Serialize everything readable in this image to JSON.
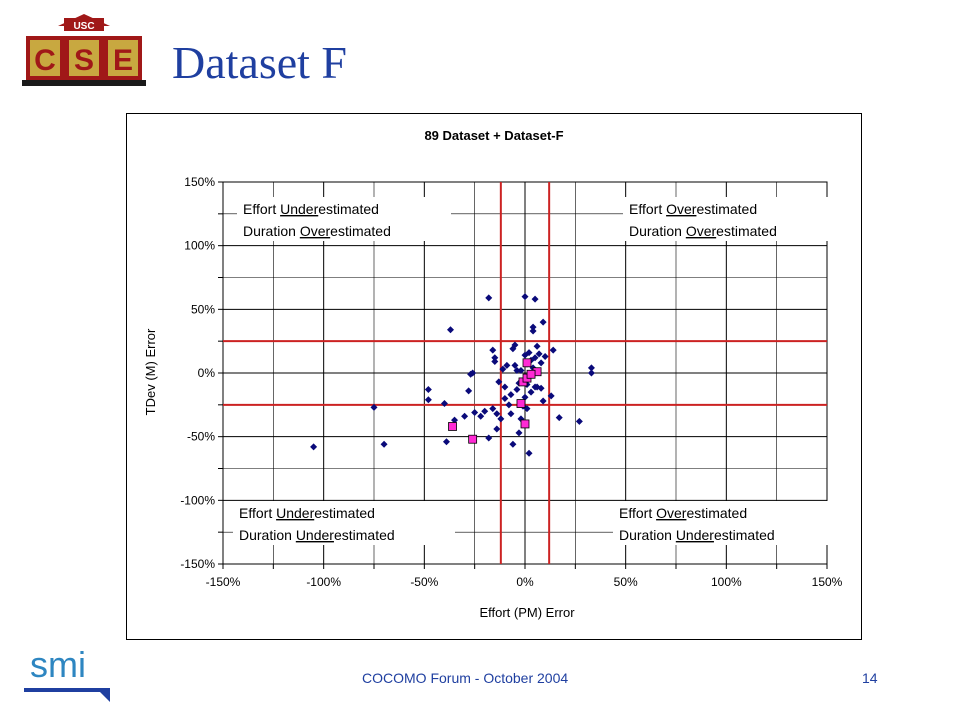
{
  "slide": {
    "title": "Dataset F",
    "footer": "COCOMO Forum - October 2004",
    "page_number": "14",
    "logo_top_text": "USC",
    "logo_letters": "CSE",
    "smi_logo_text": "smi"
  },
  "colors": {
    "title": "#1f3fa0",
    "diamond": "#0a0a7a",
    "square": "#ff2ad4",
    "threshold_line": "#cc2222",
    "logo_red": "#a01818",
    "logo_gold": "#c8a840",
    "smi": "#2e86c1"
  },
  "chart_data": {
    "type": "scatter",
    "title": "89 Dataset + Dataset-F",
    "xlabel": "Effort (PM) Error",
    "ylabel": "TDev (M) Error",
    "xlim": [
      -150,
      150
    ],
    "ylim": [
      -150,
      150
    ],
    "x_ticks": [
      "-150%",
      "-100%",
      "-50%",
      "0%",
      "50%",
      "100%",
      "150%"
    ],
    "y_ticks": [
      "150%",
      "100%",
      "50%",
      "0%",
      "-50%",
      "-100%",
      "-150%"
    ],
    "grid": true,
    "threshold_lines": {
      "x": [
        -12,
        12
      ],
      "y": [
        25,
        -25
      ]
    },
    "quadrant_labels": {
      "top_left": {
        "effort_prefix": "Effort ",
        "effort_key": "Under",
        "effort_suffix": "estimated",
        "duration_prefix": "Duration ",
        "duration_key": "Over",
        "duration_suffix": "estimated"
      },
      "top_right": {
        "effort_prefix": "Effort ",
        "effort_key": "Over",
        "effort_suffix": "estimated",
        "duration_prefix": "Duration ",
        "duration_key": "Over",
        "duration_suffix": "estimated"
      },
      "bottom_left": {
        "effort_prefix": "Effort ",
        "effort_key": "Under",
        "effort_suffix": "estimated",
        "duration_prefix": "Duration ",
        "duration_key": "Under",
        "duration_suffix": "estimated"
      },
      "bottom_right": {
        "effort_prefix": "Effort ",
        "effort_key": "Over",
        "effort_suffix": "estimated",
        "duration_prefix": "Duration ",
        "duration_key": "Under",
        "duration_suffix": "estimated"
      }
    },
    "series": [
      {
        "marker": "diamond",
        "points": [
          [
            -105,
            -58
          ],
          [
            -75,
            -27
          ],
          [
            -70,
            -56
          ],
          [
            -48,
            -13
          ],
          [
            -48,
            -21
          ],
          [
            -40,
            -24
          ],
          [
            -39,
            -54
          ],
          [
            -37,
            34
          ],
          [
            -35,
            -37
          ],
          [
            -30,
            -34
          ],
          [
            -28,
            -14
          ],
          [
            -27,
            -1
          ],
          [
            -26,
            0
          ],
          [
            -25,
            -31
          ],
          [
            -22,
            -34
          ],
          [
            -20,
            -30
          ],
          [
            -18,
            -51
          ],
          [
            -18,
            59
          ],
          [
            -16,
            -28
          ],
          [
            -16,
            18
          ],
          [
            -15,
            12
          ],
          [
            -15,
            9
          ],
          [
            -14,
            -32
          ],
          [
            -14,
            -44
          ],
          [
            -13,
            -7
          ],
          [
            -12,
            -36
          ],
          [
            -11,
            3
          ],
          [
            -10,
            -11
          ],
          [
            -10,
            -20
          ],
          [
            -9,
            6
          ],
          [
            -8,
            -25
          ],
          [
            -7,
            -32
          ],
          [
            -7,
            -17
          ],
          [
            -6,
            19
          ],
          [
            -6,
            -56
          ],
          [
            -5,
            22
          ],
          [
            -5,
            6
          ],
          [
            -4,
            2
          ],
          [
            -4,
            -13
          ],
          [
            -3,
            -47
          ],
          [
            -3,
            -8
          ],
          [
            -2,
            -36
          ],
          [
            -2,
            2
          ],
          [
            -1,
            -26
          ],
          [
            0,
            60
          ],
          [
            0,
            -19
          ],
          [
            0,
            14
          ],
          [
            1,
            -4
          ],
          [
            1,
            7
          ],
          [
            1,
            -9
          ],
          [
            1,
            -28
          ],
          [
            2,
            16
          ],
          [
            2,
            -63
          ],
          [
            3,
            10
          ],
          [
            3,
            -15
          ],
          [
            3,
            -1
          ],
          [
            4,
            33
          ],
          [
            4,
            36
          ],
          [
            4,
            4
          ],
          [
            5,
            -11
          ],
          [
            5,
            12
          ],
          [
            5,
            58
          ],
          [
            6,
            21
          ],
          [
            6,
            -11
          ],
          [
            7,
            15
          ],
          [
            8,
            -12
          ],
          [
            8,
            8
          ],
          [
            9,
            -22
          ],
          [
            9,
            40
          ],
          [
            10,
            13
          ],
          [
            13,
            -18
          ],
          [
            14,
            18
          ],
          [
            17,
            -35
          ],
          [
            27,
            -38
          ],
          [
            33,
            4
          ],
          [
            33,
            0
          ]
        ]
      },
      {
        "marker": "square",
        "points": [
          [
            -36,
            -42
          ],
          [
            -26,
            -52
          ],
          [
            -2,
            -24
          ],
          [
            -1,
            -7
          ],
          [
            0,
            -40
          ],
          [
            1,
            -4
          ],
          [
            1,
            8
          ],
          [
            6,
            1
          ],
          [
            3,
            -1
          ]
        ]
      }
    ]
  }
}
